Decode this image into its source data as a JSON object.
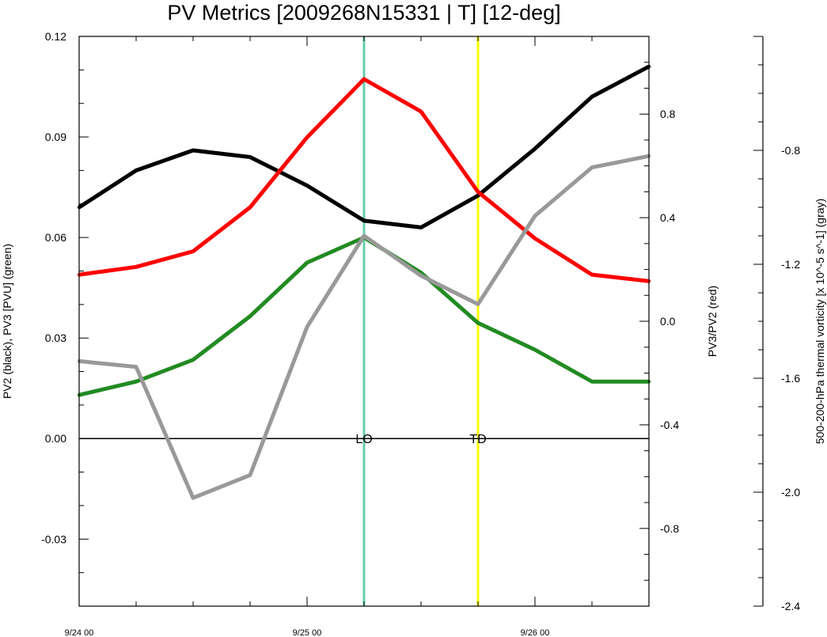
{
  "chart_data": {
    "type": "line",
    "title": "PV Metrics [2009268N15331 | T] [12-deg]",
    "x_tick_labels": [
      "9/24 00",
      "9/25 00",
      "9/26 00"
    ],
    "left_axis": {
      "label": "PV2 (black), PV3 [PVU] (green)",
      "ylim": [
        -0.05,
        0.12
      ],
      "ticks": [
        -0.03,
        0.0,
        0.03,
        0.06,
        0.09,
        0.12
      ],
      "tick_labels": [
        "-0.03",
        "0.00",
        "0.03",
        "0.06",
        "0.09",
        "0.12"
      ]
    },
    "right_axis": {
      "label": "PV3/PV2 (red)",
      "ylim": [
        -1.1,
        1.1
      ],
      "ticks": [
        -0.8,
        -0.4,
        0.0,
        0.4,
        0.8
      ],
      "tick_labels": [
        "-0.8",
        "-0.4",
        "0.0",
        "0.4",
        "0.8"
      ]
    },
    "far_right_axis": {
      "label": "500-200-hPa thermal vorticity [x 10^-5 s^-1] (gray)",
      "ylim": [
        -2.4,
        -0.4
      ],
      "ticks": [
        -2.4,
        -2.0,
        -1.6,
        -1.2,
        -0.8
      ],
      "tick_labels": [
        "-2.4",
        "-2.0",
        "-1.6",
        "-1.2",
        "-0.8"
      ]
    },
    "xlim": [
      0,
      60
    ],
    "x": [
      0,
      6,
      12,
      18,
      24,
      30,
      36,
      42,
      48,
      54,
      60
    ],
    "series": [
      {
        "color": "#000000",
        "axis": "left",
        "values": [
          0.069,
          0.08,
          0.086,
          0.084,
          0.0755,
          0.065,
          0.063,
          0.0725,
          0.0865,
          0.102,
          0.111
        ]
      },
      {
        "color": "#228b22",
        "axis": "left",
        "values": [
          0.013,
          0.017,
          0.0235,
          0.0365,
          0.0525,
          0.06,
          0.0495,
          0.0345,
          0.0265,
          0.017,
          0.017
        ]
      },
      {
        "color": "#ff0000",
        "axis": "right",
        "values": [
          0.18,
          0.21,
          0.27,
          0.44,
          0.71,
          0.935,
          0.81,
          0.5,
          0.32,
          0.18,
          0.155
        ]
      },
      {
        "color": "#999999",
        "axis": "far_right",
        "values": [
          -1.54,
          -1.56,
          -2.02,
          -1.94,
          -1.42,
          -1.1,
          -1.24,
          -1.34,
          -1.03,
          -0.86,
          -0.82
        ]
      }
    ],
    "events": [
      {
        "label": "LO",
        "x": 30,
        "color": "#66cdaa"
      },
      {
        "label": "TD",
        "x": 42,
        "color": "#ffff00"
      }
    ],
    "zero_line": true,
    "grid": false
  }
}
